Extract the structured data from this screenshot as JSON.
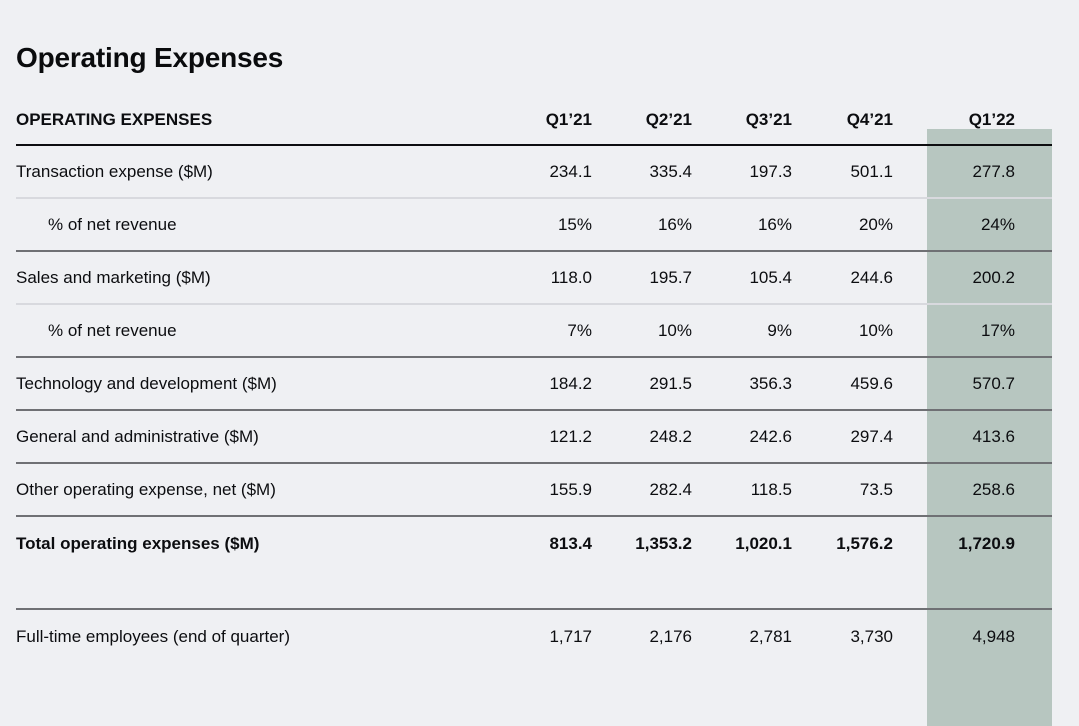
{
  "page": {
    "title": "Operating Expenses"
  },
  "table": {
    "section_label": "OPERATING EXPENSES",
    "columns": [
      "Q1’21",
      "Q2’21",
      "Q3’21",
      "Q4’21",
      "Q1’22"
    ],
    "highlighted_column": "Q1’22",
    "highlight_color": "#b7c6c0",
    "rows": [
      {
        "label": "Transaction expense ($M)",
        "values": [
          "234.1",
          "335.4",
          "197.3",
          "501.1",
          "277.8"
        ],
        "indent": false,
        "bold": false,
        "divider": "light"
      },
      {
        "label": "% of net revenue",
        "values": [
          "15%",
          "16%",
          "16%",
          "20%",
          "24%"
        ],
        "indent": true,
        "bold": false,
        "divider": "dark"
      },
      {
        "label": "Sales and marketing ($M)",
        "values": [
          "118.0",
          "195.7",
          "105.4",
          "244.6",
          "200.2"
        ],
        "indent": false,
        "bold": false,
        "divider": "light"
      },
      {
        "label": "% of net revenue",
        "values": [
          "7%",
          "10%",
          "9%",
          "10%",
          "17%"
        ],
        "indent": true,
        "bold": false,
        "divider": "dark"
      },
      {
        "label": "Technology and development ($M)",
        "values": [
          "184.2",
          "291.5",
          "356.3",
          "459.6",
          "570.7"
        ],
        "indent": false,
        "bold": false,
        "divider": "dark"
      },
      {
        "label": "General and administrative ($M)",
        "values": [
          "121.2",
          "248.2",
          "242.6",
          "297.4",
          "413.6"
        ],
        "indent": false,
        "bold": false,
        "divider": "dark"
      },
      {
        "label": "Other operating expense, net ($M)",
        "values": [
          "155.9",
          "282.4",
          "118.5",
          "73.5",
          "258.6"
        ],
        "indent": false,
        "bold": false,
        "divider": "dark"
      },
      {
        "label": "Total operating expenses ($M)",
        "values": [
          "813.4",
          "1,353.2",
          "1,020.1",
          "1,576.2",
          "1,720.9"
        ],
        "indent": false,
        "bold": true,
        "divider": "none"
      },
      {
        "type": "spacer",
        "divider": "dark"
      },
      {
        "label": "Full-time employees (end of quarter)",
        "values": [
          "1,717",
          "2,176",
          "2,781",
          "3,730",
          "4,948"
        ],
        "indent": false,
        "bold": false,
        "divider": "none"
      }
    ]
  }
}
